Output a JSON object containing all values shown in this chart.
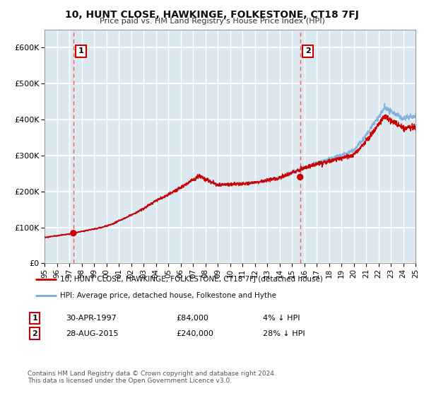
{
  "title": "10, HUNT CLOSE, HAWKINGE, FOLKESTONE, CT18 7FJ",
  "subtitle": "Price paid vs. HM Land Registry's House Price Index (HPI)",
  "ylabel_ticks": [
    "£0",
    "£100K",
    "£200K",
    "£300K",
    "£400K",
    "£500K",
    "£600K"
  ],
  "ytick_values": [
    0,
    100000,
    200000,
    300000,
    400000,
    500000,
    600000
  ],
  "ylim": [
    0,
    650000
  ],
  "year_start": 1995,
  "year_end": 2025,
  "purchase1_year": 1997.33,
  "purchase1_price": 84000,
  "purchase1_label": "1",
  "purchase1_date": "30-APR-1997",
  "purchase1_pct": "4%",
  "purchase2_year": 2015.67,
  "purchase2_price": 240000,
  "purchase2_label": "2",
  "purchase2_date": "28-AUG-2015",
  "purchase2_pct": "28%",
  "hpi_color": "#7aaddb",
  "price_color": "#cc0000",
  "vline_color": "#ff5555",
  "bg_color": "#dce8f0",
  "grid_color": "#ffffff",
  "legend_label_property": "10, HUNT CLOSE, HAWKINGE, FOLKESTONE, CT18 7FJ (detached house)",
  "legend_label_hpi": "HPI: Average price, detached house, Folkestone and Hythe",
  "footnote1": "Contains HM Land Registry data © Crown copyright and database right 2024.",
  "footnote2": "This data is licensed under the Open Government Licence v3.0."
}
